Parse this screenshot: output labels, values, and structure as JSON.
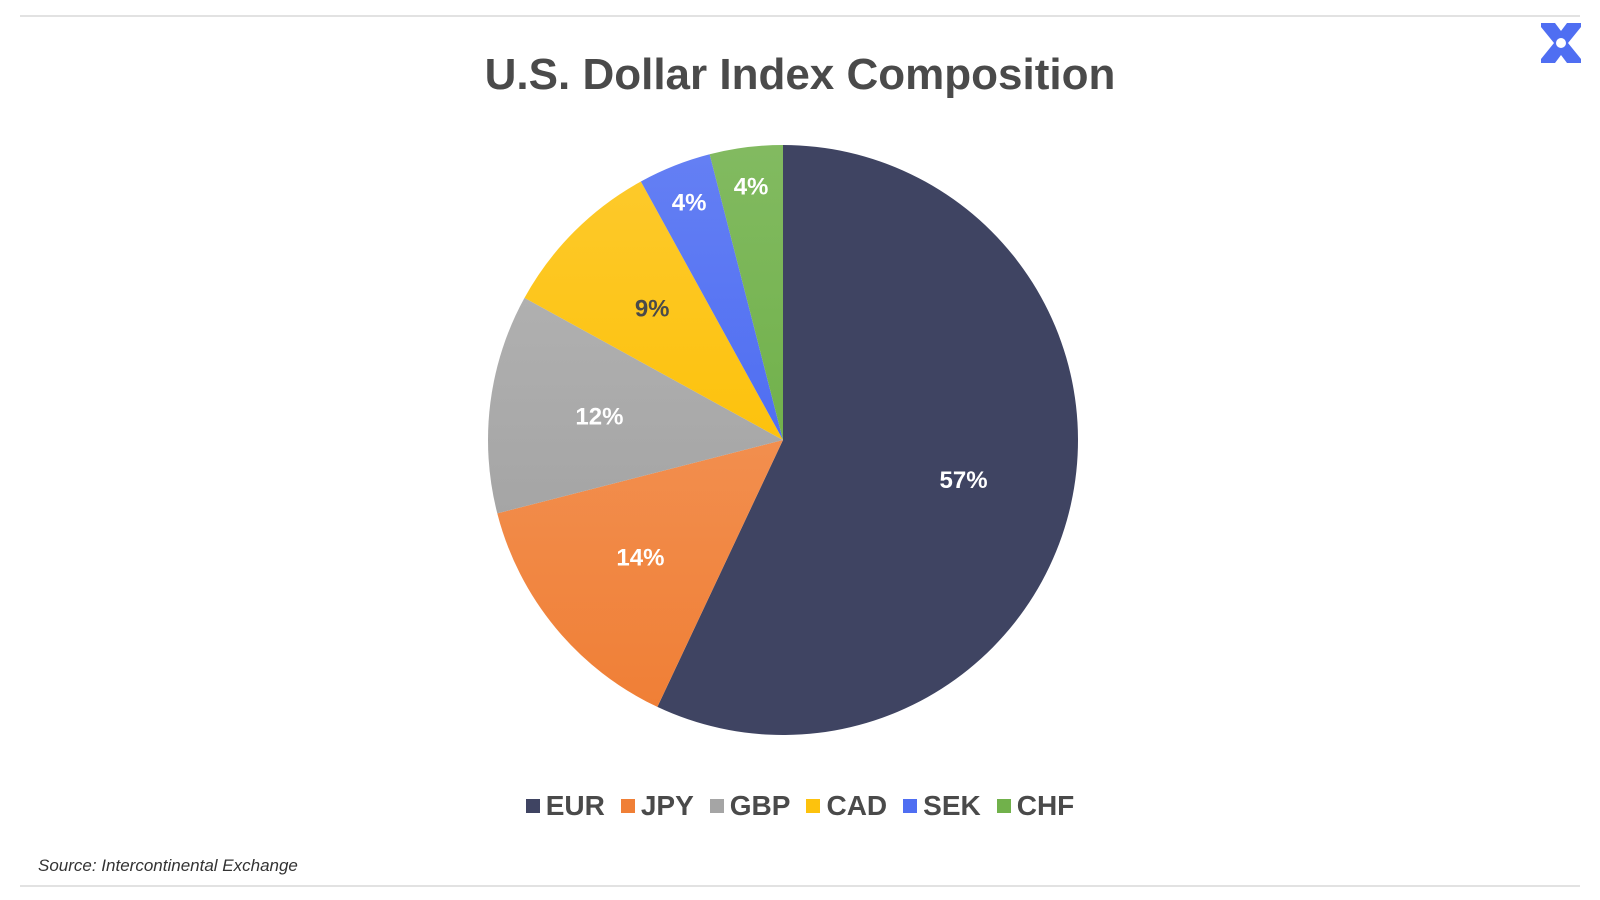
{
  "logo": {
    "icon": "x-logo-icon",
    "color": "#4f6ef2"
  },
  "chart_data": {
    "type": "pie",
    "title": "U.S. Dollar Index Composition",
    "categories": [
      "EUR",
      "JPY",
      "GBP",
      "CAD",
      "SEK",
      "CHF"
    ],
    "values": [
      57,
      14,
      12,
      9,
      4,
      4
    ],
    "labels": [
      "57%",
      "14%",
      "12%",
      "9%",
      "4%",
      "4%"
    ],
    "colors": [
      "#3f4462",
      "#f07f36",
      "#a5a5a5",
      "#fdc20d",
      "#4f6ef2",
      "#71b14b"
    ],
    "label_colors": [
      "#ffffff",
      "#ffffff",
      "#ffffff",
      "#4a4a4a",
      "#ffffff",
      "#ffffff"
    ],
    "legend_position": "bottom"
  },
  "source": "Source: Intercontinental Exchange"
}
